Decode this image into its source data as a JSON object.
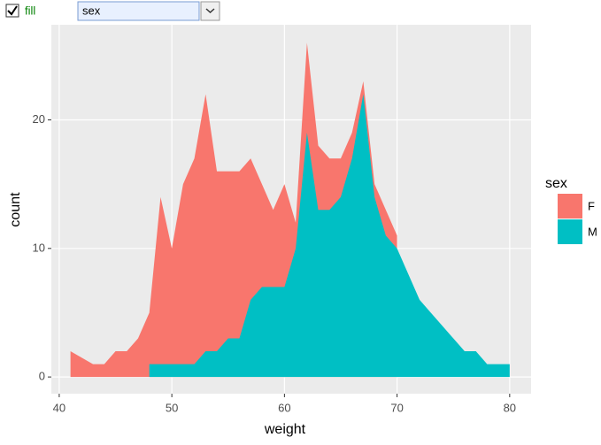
{
  "ui": {
    "checkbox_label": "fill",
    "checked": true,
    "select_value": "sex"
  },
  "chart_data": {
    "type": "area",
    "x_label": "weight",
    "y_label": "count",
    "legend_title": "sex",
    "series": [
      {
        "name": "F",
        "color": "#F8766D",
        "x": [
          41,
          43,
          44,
          45,
          46,
          47,
          48,
          49,
          50,
          51,
          52,
          53,
          54,
          55,
          56,
          57,
          58,
          59,
          60,
          61,
          62,
          63,
          64,
          65,
          66,
          67,
          68,
          69,
          70
        ],
        "values": [
          2,
          1,
          1,
          2,
          2,
          3,
          5,
          14,
          10,
          15,
          17,
          22,
          16,
          16,
          16,
          17,
          15,
          13,
          15,
          12,
          26,
          18,
          17,
          17,
          19,
          23,
          15,
          13,
          11
        ]
      },
      {
        "name": "M",
        "color": "#00BFC4",
        "x": [
          48,
          49,
          50,
          51,
          52,
          53,
          54,
          55,
          56,
          57,
          58,
          59,
          60,
          61,
          62,
          63,
          64,
          65,
          66,
          67,
          68,
          69,
          70,
          71,
          72,
          73,
          74,
          75,
          76,
          77,
          78,
          79,
          80
        ],
        "values": [
          1,
          1,
          1,
          1,
          1,
          2,
          2,
          3,
          3,
          6,
          7,
          7,
          7,
          10,
          19,
          13,
          13,
          14,
          17,
          22,
          14,
          11,
          10,
          8,
          6,
          5,
          4,
          3,
          2,
          2,
          1,
          1,
          1
        ]
      }
    ],
    "xlim": [
      39.3,
      81.9
    ],
    "xticks": [
      40,
      50,
      60,
      70,
      80
    ],
    "ylim": [
      -1.3,
      27.4
    ],
    "yticks": [
      0,
      10,
      20
    ],
    "grid": true
  }
}
